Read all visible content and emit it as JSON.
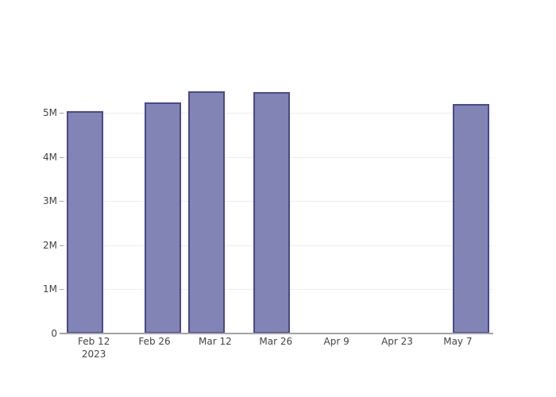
{
  "chart_data": {
    "type": "bar",
    "title": "",
    "xlabel": "",
    "ylabel": "",
    "grid": true,
    "legend": false,
    "x": [
      "2023-02-10",
      "2023-02-28",
      "2023-03-10",
      "2023-03-25",
      "2023-05-10"
    ],
    "values": [
      5040000,
      5230000,
      5490000,
      5470000,
      5190000
    ],
    "xaxis": {
      "range": [
        "2023-02-05",
        "2023-05-15"
      ],
      "ticks": [
        {
          "date": "2023-02-12",
          "label": "Feb 12",
          "sublabel": "2023"
        },
        {
          "date": "2023-02-26",
          "label": "Feb 26"
        },
        {
          "date": "2023-03-12",
          "label": "Mar 12"
        },
        {
          "date": "2023-03-26",
          "label": "Mar 26"
        },
        {
          "date": "2023-04-09",
          "label": "Apr 9"
        },
        {
          "date": "2023-04-23",
          "label": "Apr 23"
        },
        {
          "date": "2023-05-07",
          "label": "May 7"
        }
      ]
    },
    "yaxis": {
      "range": [
        0,
        5755000
      ],
      "ticks": [
        {
          "value": 0,
          "label": "0"
        },
        {
          "value": 1000000,
          "label": "1M"
        },
        {
          "value": 2000000,
          "label": "2M"
        },
        {
          "value": 3000000,
          "label": "3M"
        },
        {
          "value": 4000000,
          "label": "4M"
        },
        {
          "value": 5000000,
          "label": "5M"
        }
      ]
    },
    "colors": {
      "bar_fill": "#8184b5",
      "bar_border": "#46498f",
      "gridline": "#ededf0",
      "axis_line": "#a3a3a3",
      "tick_text": "#444444",
      "background": "#ffffff"
    }
  }
}
